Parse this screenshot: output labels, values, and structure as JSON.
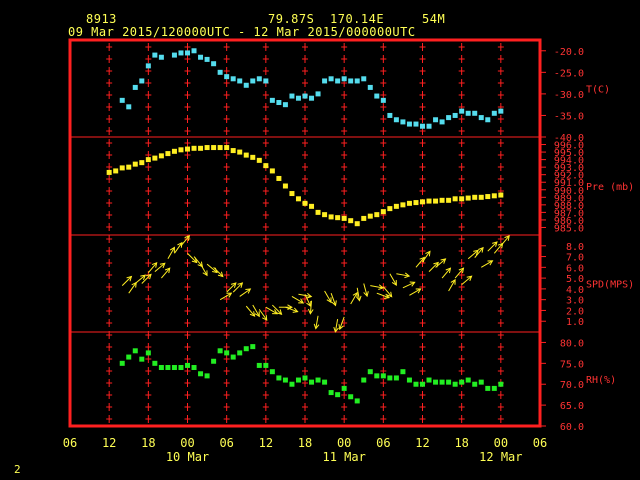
{
  "header": {
    "station_id": "8913",
    "lat": "79.87S",
    "lon": "170.14E",
    "elev": "54M",
    "date_range": "09 Mar 2015/120000UTC - 12 Mar 2015/000000UTC"
  },
  "footer": {
    "page_number": "2"
  },
  "colors": {
    "frame": "#ff2020",
    "temperature": "#55ddee",
    "pressure": "#ffee22",
    "wind": "#ffee22",
    "humidity": "#22ee22",
    "text": "#ffff55",
    "axis_text": "#ff3333"
  },
  "chart_data": [
    {
      "type": "scatter",
      "panel": "temperature",
      "ylabel": "T(C)",
      "ylim": [
        -40,
        -17.5
      ],
      "yticks": [
        "-20.0",
        "-25.0",
        "-30.0",
        "-35.0",
        "-40.0"
      ],
      "x": [
        14,
        15,
        16,
        17,
        18,
        19,
        20,
        22,
        23,
        24,
        25,
        26,
        27,
        28,
        29,
        30,
        31,
        32,
        33,
        34,
        35,
        36,
        37,
        38,
        39,
        40,
        41,
        42,
        43,
        44,
        45,
        46,
        47,
        48,
        49,
        50,
        51,
        52,
        53,
        54,
        55,
        56,
        57,
        58,
        59,
        60,
        61,
        62,
        63,
        64,
        65,
        66,
        67,
        68,
        69,
        70,
        71,
        72
      ],
      "y": [
        -31.5,
        -33,
        -28.5,
        -27,
        -23.5,
        -21,
        -21.5,
        -21,
        -20.5,
        -20.5,
        -20,
        -21.5,
        -22,
        -23,
        -25,
        -26,
        -26.5,
        -27,
        -28,
        -27,
        -26.5,
        -27,
        -31.5,
        -32,
        -32.5,
        -30.5,
        -31,
        -30.5,
        -31,
        -30,
        -27,
        -26.5,
        -27,
        -26.5,
        -27,
        -27,
        -26.5,
        -28.5,
        -30.5,
        -31.5,
        -35,
        -36,
        -36.5,
        -37,
        -37,
        -37.5,
        -37.5,
        -36,
        -36.5,
        -35.5,
        -35,
        -34,
        -34.5,
        -34.5,
        -35.5,
        -36,
        -34.5,
        -34
      ]
    },
    {
      "type": "scatter",
      "panel": "pressure",
      "ylabel": "Pre (mb)",
      "ylim": [
        984,
        997
      ],
      "yticks": [
        "985.0",
        "986.0",
        "987.0",
        "988.0",
        "989.0",
        "990.0",
        "991.0",
        "992.0",
        "993.0",
        "994.0",
        "995.0",
        "996.0"
      ],
      "x": [
        12,
        13,
        14,
        15,
        16,
        17,
        18,
        19,
        20,
        21,
        22,
        23,
        24,
        25,
        26,
        27,
        28,
        29,
        30,
        31,
        32,
        33,
        34,
        35,
        36,
        37,
        38,
        39,
        40,
        41,
        42,
        43,
        44,
        45,
        46,
        47,
        48,
        49,
        50,
        51,
        52,
        53,
        54,
        55,
        56,
        57,
        58,
        59,
        60,
        61,
        62,
        63,
        64,
        65,
        66,
        67,
        68,
        69,
        70,
        71,
        72
      ],
      "y": [
        992.3,
        992.5,
        992.9,
        993,
        993.4,
        993.6,
        994,
        994.2,
        994.5,
        994.8,
        995.1,
        995.3,
        995.4,
        995.5,
        995.5,
        995.6,
        995.6,
        995.6,
        995.6,
        995.2,
        995,
        994.6,
        994.3,
        993.9,
        993.2,
        992.5,
        991.5,
        990.5,
        989.5,
        988.8,
        988.2,
        987.8,
        987,
        986.7,
        986.4,
        986.3,
        986.2,
        985.9,
        985.5,
        986.2,
        986.5,
        986.7,
        987.1,
        987.5,
        987.8,
        988,
        988.2,
        988.3,
        988.4,
        988.5,
        988.5,
        988.6,
        988.6,
        988.8,
        988.8,
        988.9,
        989,
        989,
        989.1,
        989.2,
        989.3
      ]
    },
    {
      "type": "scatter",
      "panel": "wind",
      "ylabel": "SPD(MPS)",
      "ylim": [
        0,
        9
      ],
      "yticks": [
        "1.0",
        "2.0",
        "3.0",
        "4.0",
        "5.0",
        "6.0",
        "7.0",
        "8.0"
      ],
      "x": [
        14,
        15,
        16,
        17,
        18,
        19,
        20,
        21,
        22,
        23,
        24,
        25,
        26,
        27,
        28,
        29,
        30,
        31,
        32,
        33,
        34,
        35,
        36,
        37,
        38,
        39,
        40,
        41,
        42,
        43,
        44,
        45,
        46,
        47,
        48,
        49,
        50,
        51,
        52,
        53,
        54,
        55,
        56,
        57,
        58,
        59,
        60,
        61,
        62,
        63,
        64,
        65,
        66,
        67,
        68,
        69,
        70,
        71,
        72
      ],
      "y": [
        4.3,
        3.6,
        4.5,
        4.5,
        5.5,
        5.6,
        5.0,
        6.8,
        7.3,
        8.0,
        7.3,
        7.0,
        6.3,
        6.3,
        6.0,
        3.0,
        3.7,
        3.7,
        3.3,
        2.4,
        2.5,
        2.1,
        2.3,
        2.5,
        2.3,
        2.3,
        3.3,
        3.5,
        3.5,
        2.9,
        1.5,
        3.8,
        3.6,
        1.2,
        1.4,
        2.6,
        4.1,
        4.5,
        4.3,
        3.6,
        4.2,
        5.4,
        5.4,
        4.1,
        3.4,
        6.0,
        6.5,
        5.6,
        6.0,
        5.0,
        3.8,
        5.0,
        4.4,
        6.8,
        6.9,
        6.0,
        7.5,
        7.3,
        8.0
      ],
      "dir_deg": [
        45,
        35,
        50,
        45,
        40,
        50,
        40,
        30,
        35,
        40,
        135,
        140,
        150,
        130,
        135,
        60,
        45,
        45,
        55,
        140,
        150,
        145,
        120,
        135,
        90,
        110,
        120,
        100,
        155,
        185,
        190,
        150,
        160,
        190,
        200,
        30,
        170,
        165,
        100,
        110,
        140,
        150,
        100,
        65,
        60,
        40,
        35,
        45,
        50,
        40,
        30,
        40,
        50,
        50,
        40,
        60,
        45,
        40,
        40
      ]
    },
    {
      "type": "scatter",
      "panel": "humidity",
      "ylabel": "RH(%)",
      "ylim": [
        60,
        82.5
      ],
      "yticks": [
        "60.0",
        "65.0",
        "70.0",
        "75.0",
        "80.0"
      ],
      "x": [
        14,
        15,
        16,
        17,
        18,
        19,
        20,
        21,
        22,
        23,
        24,
        25,
        26,
        27,
        28,
        29,
        30,
        31,
        32,
        33,
        34,
        35,
        36,
        37,
        38,
        39,
        40,
        41,
        42,
        43,
        44,
        45,
        46,
        47,
        48,
        49,
        50,
        51,
        52,
        53,
        54,
        55,
        56,
        57,
        58,
        59,
        60,
        61,
        62,
        63,
        64,
        65,
        66,
        67,
        68,
        69,
        70,
        71,
        72
      ],
      "y": [
        75,
        76.5,
        78,
        76,
        77.5,
        75,
        74,
        74,
        74,
        74,
        74.5,
        74,
        72.5,
        72,
        75.5,
        78,
        77.5,
        76.5,
        77.5,
        78.5,
        79,
        74.5,
        74.5,
        73,
        71.5,
        71,
        70,
        71,
        71.5,
        70.5,
        71,
        70.5,
        68,
        67.5,
        69,
        67,
        66,
        71,
        73,
        72,
        72,
        71.5,
        71.5,
        73,
        71,
        70,
        70,
        71,
        70.5,
        70.5,
        70.5,
        70,
        70.5,
        71,
        70,
        70.5,
        69,
        69,
        70
      ]
    }
  ],
  "x_axis": {
    "ticks": [
      "06",
      "12",
      "18",
      "00",
      "06",
      "12",
      "18",
      "00",
      "06",
      "12",
      "18",
      "00",
      "06"
    ],
    "days": [
      "10 Mar",
      "11 Mar",
      "12 Mar"
    ]
  }
}
